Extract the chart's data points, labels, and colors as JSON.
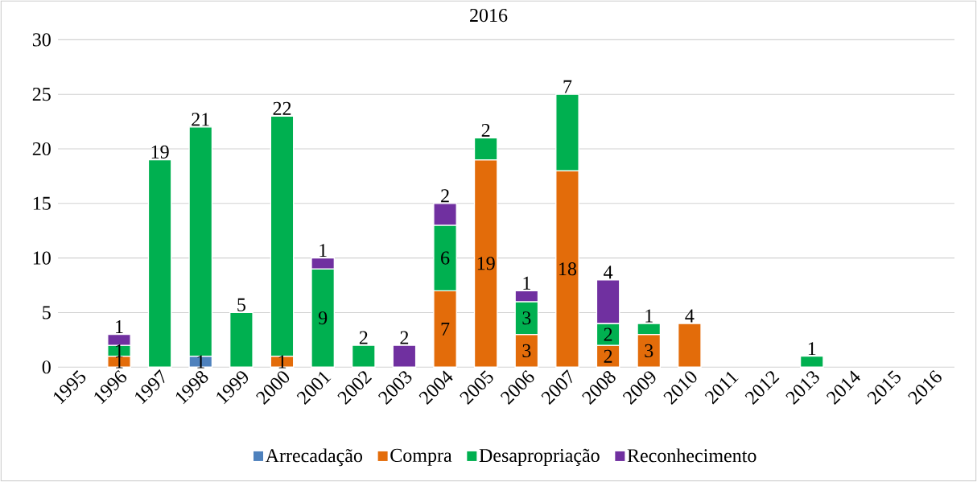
{
  "chart_data": {
    "type": "bar",
    "title": "2016",
    "stacked": true,
    "data_labels": true,
    "grid": "y",
    "legend": "bottom",
    "categories": [
      "1995",
      "1996",
      "1997",
      "1998",
      "1999",
      "2000",
      "2001",
      "2002",
      "2003",
      "2004",
      "2005",
      "2006",
      "2007",
      "2008",
      "2009",
      "2010",
      "2011",
      "2012",
      "2013",
      "2014",
      "2015",
      "2016"
    ],
    "ylim": [
      0,
      30
    ],
    "yticks": [
      0,
      5,
      10,
      15,
      20,
      25,
      30
    ],
    "series": [
      {
        "name": "Arrecadação",
        "color": "#4e81bd",
        "values": [
          null,
          null,
          null,
          1,
          null,
          null,
          null,
          null,
          null,
          null,
          null,
          null,
          null,
          null,
          null,
          null,
          null,
          null,
          null,
          null,
          null,
          null
        ]
      },
      {
        "name": "Compra",
        "color": "#e36c0a",
        "values": [
          null,
          1,
          null,
          null,
          null,
          1,
          null,
          null,
          null,
          7,
          19,
          3,
          18,
          2,
          3,
          4,
          null,
          null,
          null,
          null,
          null,
          null
        ]
      },
      {
        "name": "Desapropriação",
        "color": "#00b050",
        "values": [
          null,
          1,
          19,
          21,
          5,
          22,
          9,
          2,
          null,
          6,
          2,
          3,
          7,
          2,
          1,
          null,
          null,
          null,
          1,
          null,
          null,
          null
        ]
      },
      {
        "name": "Reconhecimento",
        "color": "#7030a0",
        "values": [
          null,
          1,
          null,
          null,
          null,
          null,
          1,
          null,
          2,
          2,
          null,
          1,
          null,
          4,
          null,
          null,
          null,
          null,
          null,
          null,
          null,
          null
        ]
      }
    ]
  }
}
